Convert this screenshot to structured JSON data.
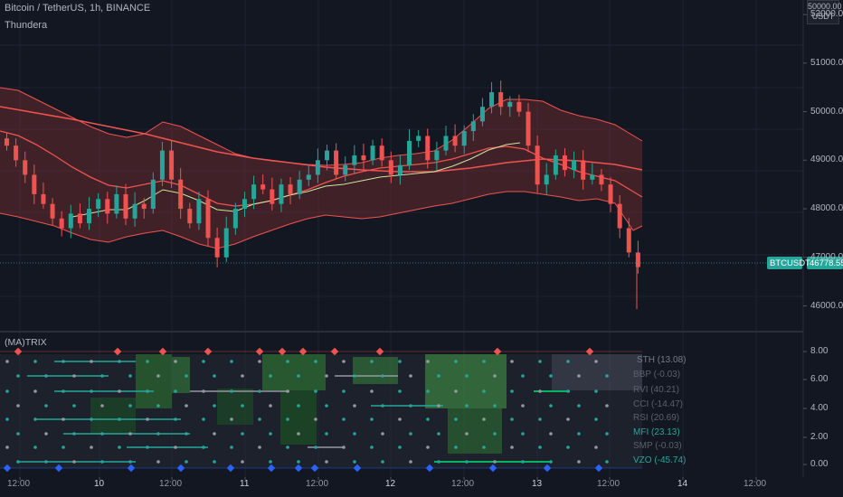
{
  "header": {
    "symbol_title": "Bitcoin / TetherUS, 1h, BINANCE",
    "indicator_name": "Thundera",
    "currency_line1": "50000.00",
    "currency_line2": "USDT"
  },
  "price_axis": {
    "ticks": [
      "52000.00",
      "51000.00",
      "50000.00",
      "49000.00",
      "48000.00",
      "47000.00",
      "46000.00"
    ]
  },
  "price_tags": {
    "symbol": "BTCUSDT",
    "last_price": "46778.55"
  },
  "lower_pane": {
    "title": "(MA)TRIX",
    "axis_ticks": [
      "8.00",
      "6.00",
      "4.00",
      "2.00",
      "0.00"
    ],
    "rows": [
      {
        "label": "STH (13.08)",
        "color": "#787b86"
      },
      {
        "label": "BBP (-0.03)",
        "color": "#5d606b"
      },
      {
        "label": "RVI (40.21)",
        "color": "#5d606b"
      },
      {
        "label": "CCI (-14.47)",
        "color": "#5d606b"
      },
      {
        "label": "RSI (20.69)",
        "color": "#5d606b"
      },
      {
        "label": "MFI (23.13)",
        "color": "#26a69a"
      },
      {
        "label": "SMP (-0.03)",
        "color": "#5d606b"
      },
      {
        "label": "VZO (-45.74)",
        "color": "#26a69a"
      }
    ]
  },
  "time_axis": {
    "labels": [
      "12:00",
      "10",
      "12:00",
      "11",
      "12:00",
      "12",
      "12:00",
      "13",
      "12:00",
      "14",
      "12:00"
    ]
  },
  "colors": {
    "background": "#131722",
    "up": "#26a69a",
    "down": "#ef5350",
    "band": "#f05350",
    "signal_line": "#c8e6a0"
  },
  "chart_data": {
    "type": "candlestick",
    "title": "Bitcoin / TetherUS, 1h, BINANCE",
    "ylim": [
      45600,
      52300
    ],
    "last": 46778.55,
    "x_ticks": [
      "12:00",
      "10",
      "12:00",
      "11",
      "12:00",
      "12",
      "12:00",
      "13",
      "12:00",
      "14",
      "12:00"
    ],
    "close_path": [
      49300,
      49000,
      48700,
      48300,
      48100,
      47800,
      47600,
      47900,
      47700,
      48000,
      48200,
      47900,
      48300,
      47800,
      48100,
      48000,
      48600,
      49200,
      48600,
      48000,
      47700,
      48200,
      47400,
      47000,
      47600,
      48000,
      48200,
      48500,
      48400,
      48100,
      48500,
      48300,
      48600,
      48700,
      49000,
      49200,
      48700,
      48900,
      49100,
      49000,
      49300,
      49000,
      48700,
      48900,
      49400,
      49500,
      49000,
      49200,
      49500,
      49300,
      49600,
      49800,
      50100,
      50400,
      50100,
      50200,
      50000,
      49300,
      48500,
      48700,
      49100,
      48800,
      49000,
      48600,
      48700,
      48500,
      48100,
      47600,
      47100,
      46800
    ]
  }
}
